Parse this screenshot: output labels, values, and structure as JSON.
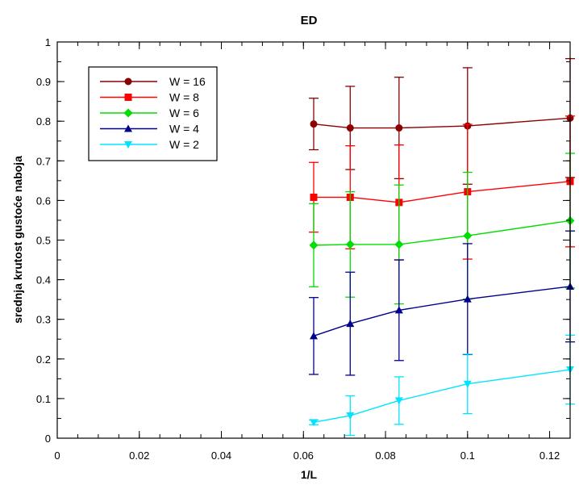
{
  "chart_data": {
    "type": "line",
    "title": "ED",
    "xlabel": "1/L",
    "ylabel": "srednja krutost gustoće naboja",
    "xlim": [
      0,
      0.125
    ],
    "ylim": [
      0,
      1
    ],
    "x_ticks": [
      0,
      0.02,
      0.04,
      0.06,
      0.08,
      0.1,
      0.12
    ],
    "x_tick_labels": [
      "0",
      "0.02",
      "0.04",
      "0.06",
      "0.08",
      "0.1",
      "0.12"
    ],
    "y_ticks": [
      0,
      0.1,
      0.2,
      0.3,
      0.4,
      0.5,
      0.6,
      0.7,
      0.8,
      0.9,
      1
    ],
    "y_tick_labels": [
      "0",
      "0.1",
      "0.2",
      "0.3",
      "0.4",
      "0.5",
      "0.6",
      "0.7",
      "0.8",
      "0.9",
      "1"
    ],
    "grid": false,
    "legend_position": "top-left",
    "x": [
      0.0625,
      0.0714,
      0.0833,
      0.1,
      0.125
    ],
    "series": [
      {
        "name": "W = 16",
        "color": "#8b0000",
        "marker": "circle",
        "values": [
          0.793,
          0.783,
          0.783,
          0.788,
          0.808
        ],
        "errors": [
          0.065,
          0.105,
          0.128,
          0.147,
          0.15
        ]
      },
      {
        "name": "W = 8",
        "color": "#ff0000",
        "marker": "square",
        "values": [
          0.608,
          0.608,
          0.595,
          0.622,
          0.648
        ],
        "errors": [
          0.088,
          0.13,
          0.145,
          0.17,
          0.165
        ]
      },
      {
        "name": "W = 6",
        "color": "#00dd00",
        "marker": "diamond",
        "values": [
          0.487,
          0.489,
          0.489,
          0.511,
          0.549
        ],
        "errors": [
          0.105,
          0.133,
          0.15,
          0.16,
          0.17
        ]
      },
      {
        "name": "W = 4",
        "color": "#00008b",
        "marker": "triangle-up",
        "values": [
          0.258,
          0.289,
          0.323,
          0.351,
          0.383
        ],
        "errors": [
          0.097,
          0.13,
          0.127,
          0.14,
          0.14
        ]
      },
      {
        "name": "W = 2",
        "color": "#00e5ff",
        "marker": "triangle-down",
        "values": [
          0.04,
          0.057,
          0.095,
          0.137,
          0.173
        ],
        "errors": [
          0.006,
          0.05,
          0.06,
          0.075,
          0.087
        ]
      }
    ]
  }
}
